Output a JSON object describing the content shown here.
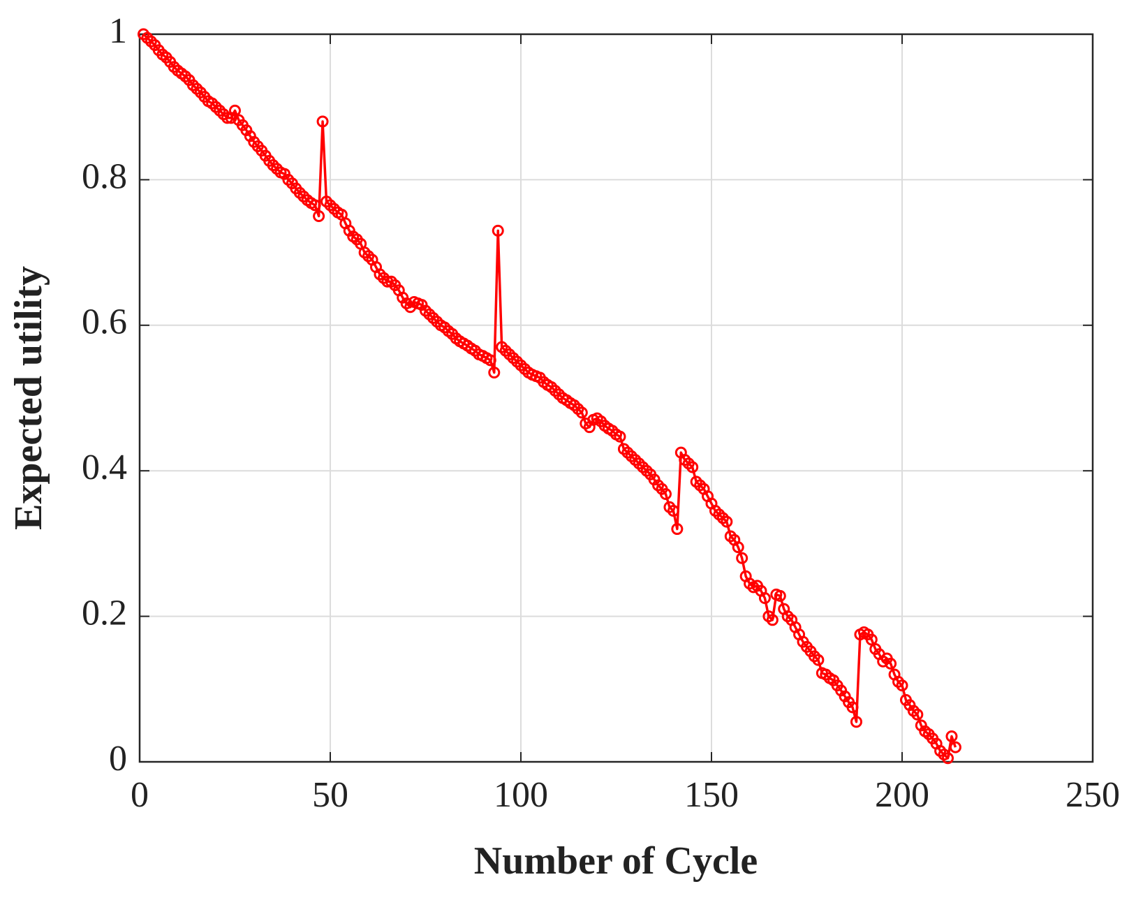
{
  "chart_data": {
    "type": "line",
    "xlabel": "Number of Cycle",
    "ylabel": "Expected utility",
    "x": [
      1,
      2,
      3,
      4,
      5,
      6,
      7,
      8,
      9,
      10,
      11,
      12,
      13,
      14,
      15,
      16,
      17,
      18,
      19,
      20,
      21,
      22,
      23,
      24,
      25,
      26,
      27,
      28,
      29,
      30,
      31,
      32,
      33,
      34,
      35,
      36,
      37,
      38,
      39,
      40,
      41,
      42,
      43,
      44,
      45,
      46,
      47,
      48,
      49,
      50,
      51,
      52,
      53,
      54,
      55,
      56,
      57,
      58,
      59,
      60,
      61,
      62,
      63,
      64,
      65,
      66,
      67,
      68,
      69,
      70,
      71,
      72,
      73,
      74,
      75,
      76,
      77,
      78,
      79,
      80,
      81,
      82,
      83,
      84,
      85,
      86,
      87,
      88,
      89,
      90,
      91,
      92,
      93,
      94,
      95,
      96,
      97,
      98,
      99,
      100,
      101,
      102,
      103,
      104,
      105,
      106,
      107,
      108,
      109,
      110,
      111,
      112,
      113,
      114,
      115,
      116,
      117,
      118,
      119,
      120,
      121,
      122,
      123,
      124,
      125,
      126,
      127,
      128,
      129,
      130,
      131,
      132,
      133,
      134,
      135,
      136,
      137,
      138,
      139,
      140,
      141,
      142,
      143,
      144,
      145,
      146,
      147,
      148,
      149,
      150,
      151,
      152,
      153,
      154,
      155,
      156,
      157,
      158,
      159,
      160,
      161,
      162,
      163,
      164,
      165,
      166,
      167,
      168,
      169,
      170,
      171,
      172,
      173,
      174,
      175,
      176,
      177,
      178,
      179,
      180,
      181,
      182,
      183,
      184,
      185,
      186,
      187,
      188,
      189,
      190,
      191,
      192,
      193,
      194,
      195,
      196,
      197,
      198,
      199,
      200,
      201,
      202,
      203,
      204,
      205,
      206,
      207,
      208,
      209,
      210,
      211,
      212,
      213,
      214
    ],
    "values": [
      1.0,
      0.995,
      0.99,
      0.985,
      0.978,
      0.972,
      0.968,
      0.962,
      0.955,
      0.95,
      0.946,
      0.942,
      0.937,
      0.93,
      0.925,
      0.92,
      0.914,
      0.908,
      0.905,
      0.9,
      0.895,
      0.89,
      0.885,
      0.885,
      0.895,
      0.882,
      0.875,
      0.868,
      0.86,
      0.852,
      0.846,
      0.84,
      0.833,
      0.826,
      0.82,
      0.815,
      0.81,
      0.808,
      0.8,
      0.795,
      0.788,
      0.782,
      0.777,
      0.772,
      0.768,
      0.765,
      0.75,
      0.88,
      0.77,
      0.765,
      0.76,
      0.755,
      0.752,
      0.74,
      0.73,
      0.722,
      0.718,
      0.712,
      0.7,
      0.695,
      0.69,
      0.68,
      0.67,
      0.665,
      0.66,
      0.66,
      0.655,
      0.648,
      0.638,
      0.63,
      0.625,
      0.632,
      0.63,
      0.628,
      0.62,
      0.615,
      0.61,
      0.605,
      0.6,
      0.597,
      0.592,
      0.588,
      0.582,
      0.578,
      0.575,
      0.572,
      0.568,
      0.565,
      0.56,
      0.558,
      0.555,
      0.552,
      0.535,
      0.73,
      0.57,
      0.565,
      0.56,
      0.555,
      0.55,
      0.545,
      0.54,
      0.535,
      0.532,
      0.53,
      0.528,
      0.522,
      0.518,
      0.515,
      0.51,
      0.505,
      0.5,
      0.497,
      0.493,
      0.49,
      0.485,
      0.48,
      0.465,
      0.46,
      0.47,
      0.472,
      0.468,
      0.462,
      0.458,
      0.455,
      0.45,
      0.447,
      0.43,
      0.425,
      0.42,
      0.415,
      0.41,
      0.405,
      0.4,
      0.395,
      0.388,
      0.38,
      0.375,
      0.368,
      0.35,
      0.345,
      0.32,
      0.425,
      0.415,
      0.41,
      0.405,
      0.385,
      0.38,
      0.375,
      0.365,
      0.355,
      0.345,
      0.34,
      0.335,
      0.33,
      0.31,
      0.305,
      0.295,
      0.28,
      0.255,
      0.245,
      0.24,
      0.242,
      0.235,
      0.225,
      0.2,
      0.195,
      0.23,
      0.228,
      0.21,
      0.2,
      0.195,
      0.185,
      0.175,
      0.165,
      0.158,
      0.152,
      0.145,
      0.14,
      0.122,
      0.12,
      0.115,
      0.112,
      0.105,
      0.098,
      0.09,
      0.082,
      0.075,
      0.055,
      0.175,
      0.178,
      0.175,
      0.168,
      0.155,
      0.148,
      0.138,
      0.142,
      0.135,
      0.12,
      0.11,
      0.105,
      0.085,
      0.078,
      0.07,
      0.065,
      0.05,
      0.042,
      0.038,
      0.032,
      0.025,
      0.015,
      0.01,
      0.005,
      0.035,
      0.02
    ],
    "color": "#ff0000",
    "xlim": [
      0,
      250
    ],
    "xticks": [
      0,
      50,
      100,
      150,
      200,
      250
    ],
    "ylim": [
      0,
      1
    ],
    "yticks": [
      0,
      0.2,
      0.4,
      0.6,
      0.8,
      1
    ],
    "grid": true
  }
}
